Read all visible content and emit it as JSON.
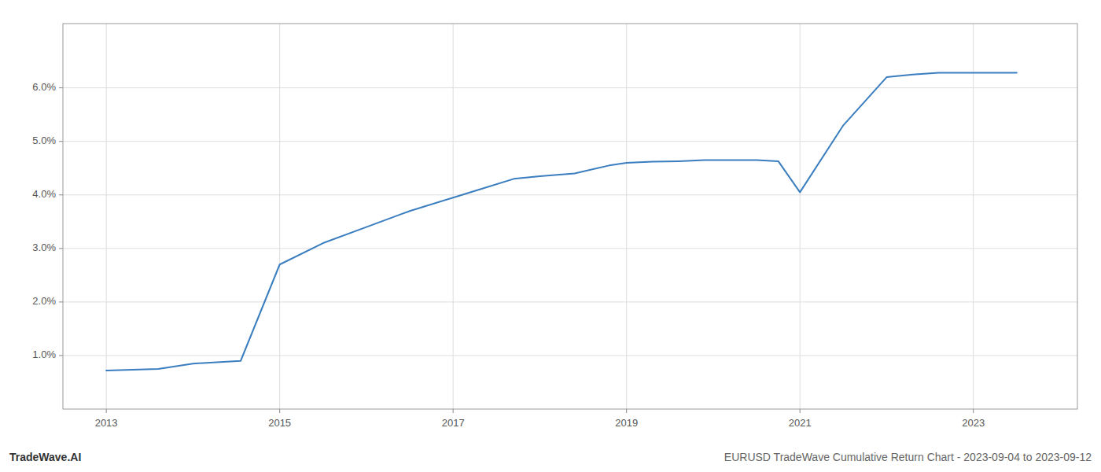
{
  "chart_data": {
    "type": "line",
    "title": "EURUSD TradeWave Cumulative Return Chart - 2023-09-04 to 2023-09-12",
    "annotations": [
      "TradeWave.AI"
    ],
    "x": [
      2013,
      2013.6,
      2014.0,
      2014.55,
      2015.0,
      2015.5,
      2016.0,
      2016.5,
      2017.0,
      2017.3,
      2017.7,
      2018.0,
      2018.4,
      2018.8,
      2019.0,
      2019.3,
      2019.6,
      2019.9,
      2020.2,
      2020.5,
      2020.75,
      2021.0,
      2021.5,
      2022.0,
      2022.3,
      2022.6,
      2023.0,
      2023.5
    ],
    "values": [
      0.0072,
      0.0075,
      0.0085,
      0.009,
      0.027,
      0.031,
      0.034,
      0.037,
      0.0395,
      0.041,
      0.043,
      0.0435,
      0.044,
      0.0455,
      0.046,
      0.0462,
      0.0463,
      0.0465,
      0.0465,
      0.0465,
      0.0463,
      0.0405,
      0.053,
      0.062,
      0.0625,
      0.0628,
      0.0628,
      0.0628
    ],
    "color": "#3a7ebf",
    "xlim": [
      2012.5,
      2024.2
    ],
    "ylim": [
      0.0,
      0.072
    ],
    "xticks": [
      2013,
      2015,
      2017,
      2019,
      2021,
      2023
    ],
    "yticks": [
      {
        "value": 0.01,
        "label": "1.0%"
      },
      {
        "value": 0.02,
        "label": "2.0%"
      },
      {
        "value": 0.03,
        "label": "3.0%"
      },
      {
        "value": 0.04,
        "label": "4.0%"
      },
      {
        "value": 0.05,
        "label": "5.0%"
      },
      {
        "value": 0.06,
        "label": "6.0%"
      }
    ],
    "grid": true
  }
}
